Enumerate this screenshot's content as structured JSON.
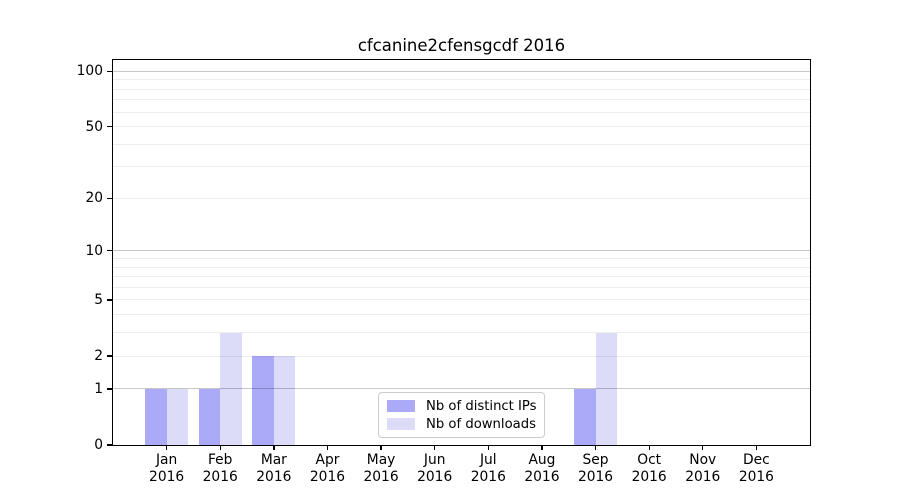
{
  "title": "cfcanine2cfensgcdf 2016",
  "colors": {
    "bar_distinct_ips": "#aaaaf8",
    "bar_downloads": "#dcdcf8",
    "axis": "#000000",
    "legend_border": "#cccccc"
  },
  "legend": {
    "items": [
      {
        "label": "Nb of distinct IPs"
      },
      {
        "label": "Nb of downloads"
      }
    ]
  },
  "chart_data": {
    "type": "bar",
    "title": "cfcanine2cfensgcdf 2016",
    "categories": [
      {
        "month": "Jan",
        "year": "2016"
      },
      {
        "month": "Feb",
        "year": "2016"
      },
      {
        "month": "Mar",
        "year": "2016"
      },
      {
        "month": "Apr",
        "year": "2016"
      },
      {
        "month": "May",
        "year": "2016"
      },
      {
        "month": "Jun",
        "year": "2016"
      },
      {
        "month": "Jul",
        "year": "2016"
      },
      {
        "month": "Aug",
        "year": "2016"
      },
      {
        "month": "Sep",
        "year": "2016"
      },
      {
        "month": "Oct",
        "year": "2016"
      },
      {
        "month": "Nov",
        "year": "2016"
      },
      {
        "month": "Dec",
        "year": "2016"
      }
    ],
    "series": [
      {
        "name": "Nb of distinct IPs",
        "color": "#aaaaf8",
        "values": [
          1,
          1,
          2,
          0,
          0,
          0,
          0,
          0,
          1,
          0,
          0,
          0
        ]
      },
      {
        "name": "Nb of downloads",
        "color": "#dcdcf8",
        "values": [
          1,
          3,
          2,
          0,
          0,
          0,
          0,
          0,
          3,
          0,
          0,
          0
        ]
      }
    ],
    "xlabel": "",
    "ylabel": "",
    "yscale": "log1p",
    "ylim": [
      0,
      115
    ],
    "y_tick_labels": [
      0,
      1,
      2,
      5,
      10,
      20,
      50,
      100
    ],
    "y_major_gridlines": [
      1,
      10,
      100
    ],
    "y_minor_gridlines": [
      2,
      3,
      4,
      5,
      6,
      7,
      8,
      9,
      20,
      30,
      40,
      50,
      60,
      70,
      80,
      90
    ],
    "grid": "horizontal",
    "gridlines_above_bars": true,
    "legend_position": "lower center"
  }
}
